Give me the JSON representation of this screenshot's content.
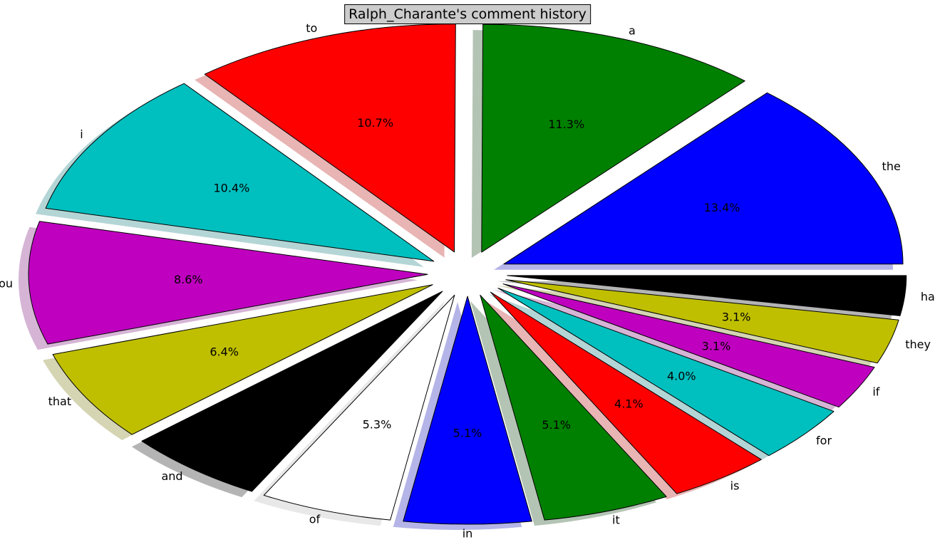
{
  "chart_data": {
    "type": "pie",
    "title": "Ralph_Charante's comment history",
    "slices": [
      {
        "label": "the",
        "value": 13.4,
        "pct": "13.4%",
        "color": "#0000ff"
      },
      {
        "label": "a",
        "value": 11.3,
        "pct": "11.3%",
        "color": "#008000"
      },
      {
        "label": "to",
        "value": 10.7,
        "pct": "10.7%",
        "color": "#ff0000"
      },
      {
        "label": "i",
        "value": 10.4,
        "pct": "10.4%",
        "color": "#00bfbf"
      },
      {
        "label": "you",
        "value": 8.6,
        "pct": "8.6%",
        "color": "#bf00bf"
      },
      {
        "label": "that",
        "value": 6.4,
        "pct": "6.4%",
        "color": "#bfbf00"
      },
      {
        "label": "and",
        "value": 5.6,
        "pct": "",
        "color": "#000000"
      },
      {
        "label": "of",
        "value": 5.3,
        "pct": "5.3%",
        "color": "#ffffff"
      },
      {
        "label": "in",
        "value": 5.1,
        "pct": "5.1%",
        "color": "#0000ff"
      },
      {
        "label": "it",
        "value": 5.1,
        "pct": "5.1%",
        "color": "#008000"
      },
      {
        "label": "is",
        "value": 4.1,
        "pct": "4.1%",
        "color": "#ff0000"
      },
      {
        "label": "for",
        "value": 4.0,
        "pct": "4.0%",
        "color": "#00bfbf"
      },
      {
        "label": "if",
        "value": 3.1,
        "pct": "3.1%",
        "color": "#bf00bf"
      },
      {
        "label": "they",
        "value": 3.1,
        "pct": "3.1%",
        "color": "#bfbf00"
      },
      {
        "label": "have",
        "value": 2.8,
        "pct": "",
        "color": "#000000"
      }
    ],
    "start_angle_deg": 0,
    "direction": "counterclockwise",
    "exploded": true,
    "shadow": true
  }
}
